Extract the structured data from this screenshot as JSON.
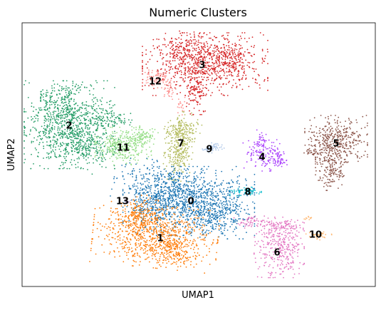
{
  "chart_data": {
    "type": "scatter",
    "title": "Numeric Clusters",
    "xlabel": "UMAP1",
    "ylabel": "UMAP2",
    "xticks": [],
    "yticks": [],
    "grid": false,
    "legend": "on data",
    "clusters": [
      {
        "label": "0",
        "color": "#1f77b4",
        "center": [
          268,
          282
        ]
      },
      {
        "label": "1",
        "color": "#ff7f0e",
        "center": [
          225,
          334
        ]
      },
      {
        "label": "2",
        "color": "#279e68",
        "center": [
          97,
          176
        ]
      },
      {
        "label": "3",
        "color": "#d62728",
        "center": [
          284,
          91
        ]
      },
      {
        "label": "4",
        "color": "#aa40fc",
        "center": [
          368,
          220
        ]
      },
      {
        "label": "5",
        "color": "#8c564b",
        "center": [
          472,
          201
        ]
      },
      {
        "label": "6",
        "color": "#e377c2",
        "center": [
          389,
          354
        ]
      },
      {
        "label": "7",
        "color": "#b5bd61",
        "center": [
          254,
          201
        ]
      },
      {
        "label": "8",
        "color": "#17becf",
        "center": [
          348,
          269
        ]
      },
      {
        "label": "9",
        "color": "#aec7e8",
        "center": [
          294,
          209
        ]
      },
      {
        "label": "10",
        "color": "#ffbb78",
        "center": [
          443,
          329
        ]
      },
      {
        "label": "11",
        "color": "#98df8a",
        "center": [
          173,
          207
        ]
      },
      {
        "label": "12",
        "color": "#ff9896",
        "center": [
          218,
          114
        ]
      },
      {
        "label": "13",
        "color": "#c5b0d5",
        "center": [
          172,
          282
        ]
      }
    ]
  }
}
